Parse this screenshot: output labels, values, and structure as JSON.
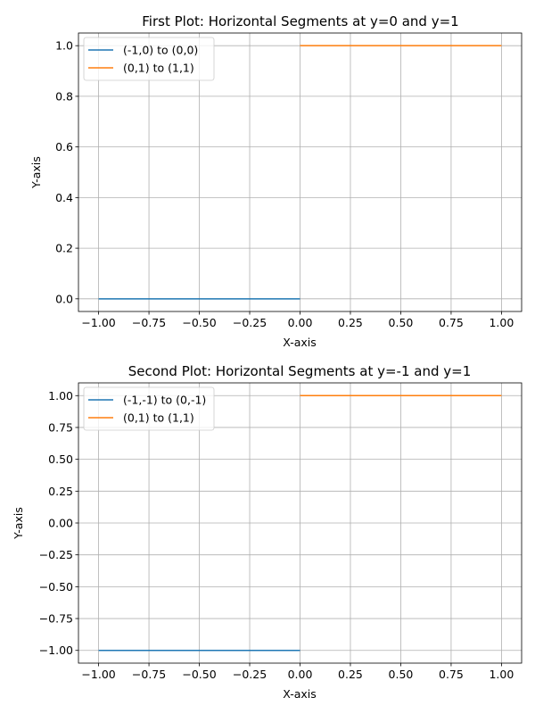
{
  "chart_data": [
    {
      "type": "line",
      "title": "First Plot: Horizontal Segments at y=0 and y=1",
      "xlabel": "X-axis",
      "ylabel": "Y-axis",
      "xlim": [
        -1.1,
        1.1
      ],
      "ylim": [
        -0.05,
        1.05
      ],
      "grid": true,
      "legend": "top-left",
      "xticks": [
        -1.0,
        -0.75,
        -0.5,
        -0.25,
        0.0,
        0.25,
        0.5,
        0.75,
        1.0
      ],
      "xtick_labels": [
        "−1.00",
        "−0.75",
        "−0.50",
        "−0.25",
        "0.00",
        "0.25",
        "0.50",
        "0.75",
        "1.00"
      ],
      "yticks": [
        0.0,
        0.2,
        0.4,
        0.6,
        0.8,
        1.0
      ],
      "ytick_labels": [
        "0.0",
        "0.2",
        "0.4",
        "0.6",
        "0.8",
        "1.0"
      ],
      "series": [
        {
          "name": "(-1,0) to (0,0)",
          "color": "#1f77b4",
          "x": [
            -1,
            0
          ],
          "y": [
            0,
            0
          ]
        },
        {
          "name": "(0,1) to (1,1)",
          "color": "#ff7f0e",
          "x": [
            0,
            1
          ],
          "y": [
            1,
            1
          ]
        }
      ]
    },
    {
      "type": "line",
      "title": "Second Plot: Horizontal Segments at y=-1 and y=1",
      "xlabel": "X-axis",
      "ylabel": "Y-axis",
      "xlim": [
        -1.1,
        1.1
      ],
      "ylim": [
        -1.1,
        1.1
      ],
      "grid": true,
      "legend": "top-left",
      "xticks": [
        -1.0,
        -0.75,
        -0.5,
        -0.25,
        0.0,
        0.25,
        0.5,
        0.75,
        1.0
      ],
      "xtick_labels": [
        "−1.00",
        "−0.75",
        "−0.50",
        "−0.25",
        "0.00",
        "0.25",
        "0.50",
        "0.75",
        "1.00"
      ],
      "yticks": [
        -1.0,
        -0.75,
        -0.5,
        -0.25,
        0.0,
        0.25,
        0.5,
        0.75,
        1.0
      ],
      "ytick_labels": [
        "−1.00",
        "−0.75",
        "−0.50",
        "−0.25",
        "0.00",
        "0.25",
        "0.50",
        "0.75",
        "1.00"
      ],
      "series": [
        {
          "name": "(-1,-1) to (0,-1)",
          "color": "#1f77b4",
          "x": [
            -1,
            0
          ],
          "y": [
            -1,
            -1
          ]
        },
        {
          "name": "(0,1) to (1,1)",
          "color": "#ff7f0e",
          "x": [
            0,
            1
          ],
          "y": [
            1,
            1
          ]
        }
      ]
    }
  ]
}
